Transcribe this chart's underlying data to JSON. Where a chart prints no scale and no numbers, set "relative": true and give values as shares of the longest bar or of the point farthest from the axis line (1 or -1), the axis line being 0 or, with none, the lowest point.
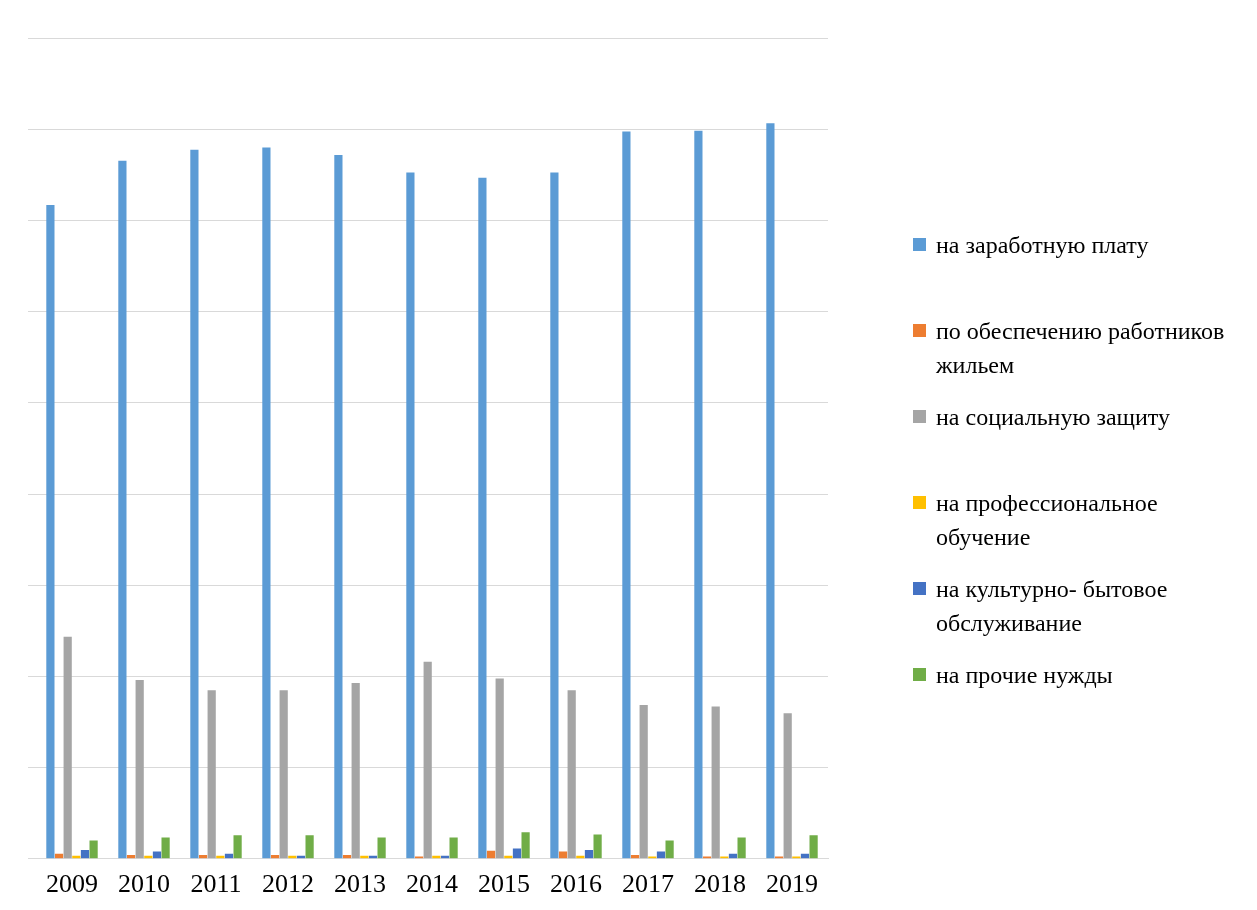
{
  "chart_data": {
    "type": "bar",
    "relative": true,
    "grid": "y",
    "legend": "right",
    "categories": [
      "2009",
      "2010",
      "2011",
      "2012",
      "2013",
      "2014",
      "2015",
      "2016",
      "2017",
      "2018",
      "2019"
    ],
    "series": [
      {
        "name": "на заработную плату",
        "color": "#5b9bd5",
        "values": [
          0.889,
          0.949,
          0.964,
          0.967,
          0.957,
          0.933,
          0.926,
          0.933,
          0.989,
          0.99,
          1
        ]
      },
      {
        "name": "по обеспечению работников жильем",
        "color": "#ed7d31",
        "values": [
          0.007,
          0.005,
          0.005,
          0.005,
          0.005,
          0.003,
          0.011,
          0.01,
          0.005,
          0.003,
          0.003
        ]
      },
      {
        "name": "на социальную защиту",
        "color": "#a5a5a5",
        "values": [
          0.302,
          0.243,
          0.229,
          0.229,
          0.239,
          0.268,
          0.245,
          0.229,
          0.209,
          0.207,
          0.198
        ]
      },
      {
        "name": "на профессиональное обучение",
        "color": "#ffc000",
        "values": [
          0.004,
          0.004,
          0.004,
          0.004,
          0.004,
          0.004,
          0.004,
          0.004,
          0.003,
          0.003,
          0.003
        ]
      },
      {
        "name": "на культурно- бытовое обслуживание",
        "color": "#4472c4",
        "values": [
          0.012,
          0.01,
          0.007,
          0.004,
          0.004,
          0.004,
          0.014,
          0.012,
          0.01,
          0.007,
          0.007
        ]
      },
      {
        "name": "на прочие нужды",
        "color": "#70ad47",
        "values": [
          0.025,
          0.029,
          0.032,
          0.032,
          0.029,
          0.029,
          0.036,
          0.033,
          0.025,
          0.029,
          0.032
        ]
      }
    ]
  }
}
